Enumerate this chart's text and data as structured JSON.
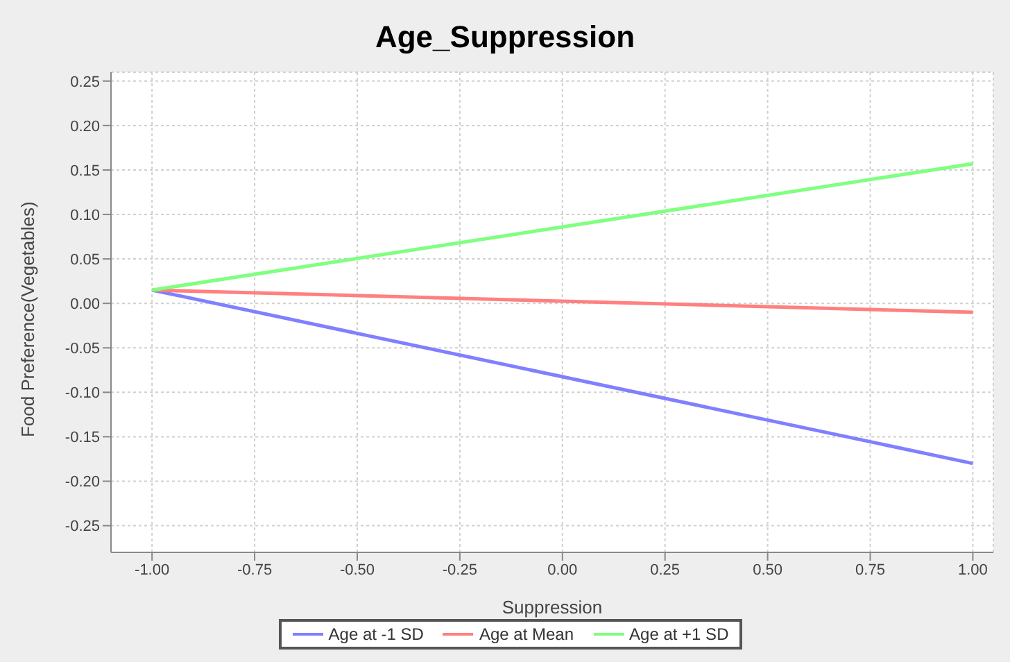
{
  "chart_data": {
    "type": "line",
    "title": "Age_Suppression",
    "xlabel": "Suppression",
    "ylabel": "Food Preference(Vegetables)",
    "x": [
      -1,
      1
    ],
    "series": [
      {
        "name": "Age at -1 SD",
        "color": "#8080ff",
        "values": [
          0.015,
          -0.18
        ]
      },
      {
        "name": "Age at Mean",
        "color": "#ff8080",
        "values": [
          0.015,
          -0.01
        ]
      },
      {
        "name": "Age at +1 SD",
        "color": "#80ff80",
        "values": [
          0.015,
          0.157
        ]
      }
    ],
    "xlim": [
      -1.1,
      1.05
    ],
    "ylim": [
      -0.28,
      0.26
    ],
    "xticks": [
      {
        "value": -1,
        "label": "-1.00"
      },
      {
        "value": -0.75,
        "label": "-0.75"
      },
      {
        "value": -0.5,
        "label": "-0.50"
      },
      {
        "value": -0.25,
        "label": "-0.25"
      },
      {
        "value": 0,
        "label": "0.00"
      },
      {
        "value": 0.25,
        "label": "0.25"
      },
      {
        "value": 0.5,
        "label": "0.50"
      },
      {
        "value": 0.75,
        "label": "0.75"
      },
      {
        "value": 1,
        "label": "1.00"
      }
    ],
    "yticks": [
      {
        "value": -0.25,
        "label": "-0.25"
      },
      {
        "value": -0.2,
        "label": "-0.20"
      },
      {
        "value": -0.15,
        "label": "-0.15"
      },
      {
        "value": -0.1,
        "label": "-0.10"
      },
      {
        "value": -0.05,
        "label": "-0.05"
      },
      {
        "value": 0,
        "label": "0.00"
      },
      {
        "value": 0.05,
        "label": "0.05"
      },
      {
        "value": 0.1,
        "label": "0.10"
      },
      {
        "value": 0.15,
        "label": "0.15"
      },
      {
        "value": 0.2,
        "label": "0.20"
      },
      {
        "value": 0.25,
        "label": "0.25"
      }
    ],
    "grid": true,
    "legend": "bottom",
    "marker": "none",
    "line_style": "solid"
  }
}
